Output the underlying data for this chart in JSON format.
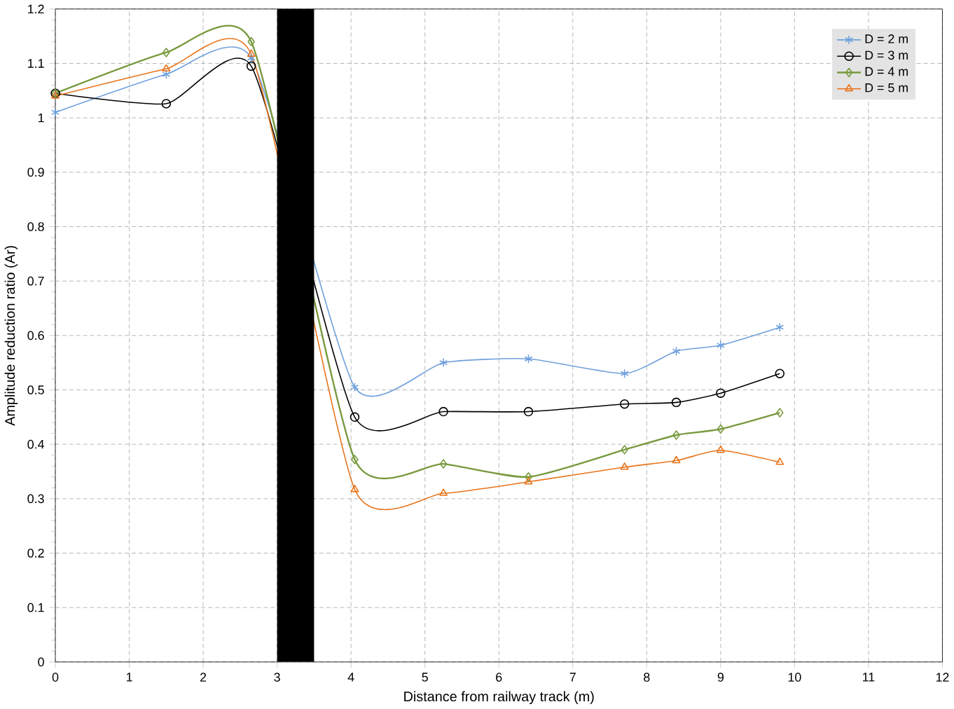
{
  "chart_data": {
    "type": "line",
    "xlabel": "Distance from railway track (m)",
    "ylabel": "Amplitude reduction ratio (Ar)",
    "x": [
      0,
      1.5,
      2.65,
      4.05,
      5.25,
      6.4,
      7.7,
      8.4,
      9.0,
      9.8
    ],
    "series": [
      {
        "name": "D = 2 m",
        "color": "#6fa0dc",
        "marker": "cross",
        "values": [
          1.01,
          1.08,
          1.11,
          0.505,
          0.55,
          0.557,
          0.53,
          0.571,
          0.582,
          0.615
        ]
      },
      {
        "name": "D = 3 m",
        "color": "#000000",
        "marker": "circle",
        "values": [
          1.045,
          1.026,
          1.095,
          0.45,
          0.46,
          0.46,
          0.474,
          0.477,
          0.494,
          0.53
        ]
      },
      {
        "name": "D = 4 m",
        "color": "#77993c",
        "marker": "diamond",
        "values": [
          1.045,
          1.12,
          1.14,
          0.372,
          0.364,
          0.34,
          0.39,
          0.417,
          0.428,
          0.458
        ]
      },
      {
        "name": "D = 5 m",
        "color": "#e8731a",
        "marker": "triangle",
        "values": [
          1.04,
          1.09,
          1.117,
          0.317,
          0.31,
          0.331,
          0.358,
          0.37,
          0.389,
          0.367
        ]
      }
    ],
    "xlim": [
      0,
      12
    ],
    "xticks": [
      0,
      1,
      2,
      3,
      4,
      5,
      6,
      7,
      8,
      9,
      10,
      11,
      12
    ],
    "ylim": [
      0,
      1.2
    ],
    "yticks": [
      0,
      0.1,
      0.2,
      0.3,
      0.4,
      0.5,
      0.6,
      0.7,
      0.8,
      0.9,
      1,
      1.1,
      1.2
    ],
    "bands": [
      {
        "axis": "x",
        "from": 3.0,
        "to": 3.5,
        "color": "#000000"
      }
    ],
    "grid": true,
    "legend": "top right"
  }
}
